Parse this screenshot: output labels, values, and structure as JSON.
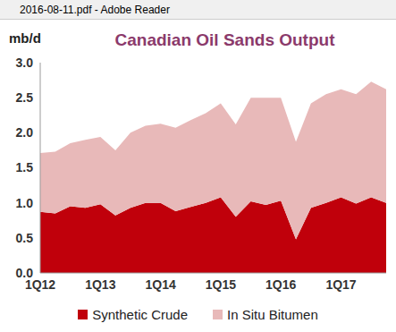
{
  "chart_data": {
    "type": "area",
    "title": "Canadian Oil Sands Output",
    "y_label": "mb/d",
    "annotations": [
      "2016-08-11.pdf - Adobe Reader"
    ],
    "categories": [
      "1Q12",
      null,
      null,
      null,
      "1Q13",
      null,
      null,
      null,
      "1Q14",
      null,
      null,
      null,
      "1Q15",
      null,
      null,
      null,
      "1Q16",
      null,
      null,
      null,
      "1Q17",
      null,
      null,
      null
    ],
    "series": [
      {
        "name": "Synthetic Crude",
        "color": "#c0000b",
        "values": [
          0.87,
          0.85,
          0.95,
          0.93,
          0.98,
          0.82,
          0.93,
          1.0,
          1.0,
          0.88,
          0.94,
          1.0,
          1.08,
          0.8,
          1.02,
          0.97,
          1.03,
          0.48,
          0.93,
          1.0,
          1.08,
          0.99,
          1.08,
          1.0
        ]
      },
      {
        "name": "In Situ Bitumen",
        "color": "#e8b9b9",
        "values": [
          0.84,
          0.88,
          0.9,
          0.97,
          0.96,
          0.93,
          1.07,
          1.1,
          1.13,
          1.19,
          1.24,
          1.28,
          1.34,
          1.32,
          1.48,
          1.53,
          1.47,
          1.39,
          1.49,
          1.55,
          1.54,
          1.56,
          1.65,
          1.62
        ]
      }
    ],
    "ylim": [
      0,
      3
    ],
    "yticks": [
      {
        "value": 0,
        "label": "0.0"
      },
      {
        "value": 0.5,
        "label": "0.5"
      },
      {
        "value": 1,
        "label": "1.0"
      },
      {
        "value": 1.5,
        "label": "1.5"
      },
      {
        "value": 2,
        "label": "2.0"
      },
      {
        "value": 2.5,
        "label": "2.5"
      },
      {
        "value": 3,
        "label": "3.0"
      }
    ],
    "stacked": true,
    "grid": false,
    "legend": "bottom"
  }
}
